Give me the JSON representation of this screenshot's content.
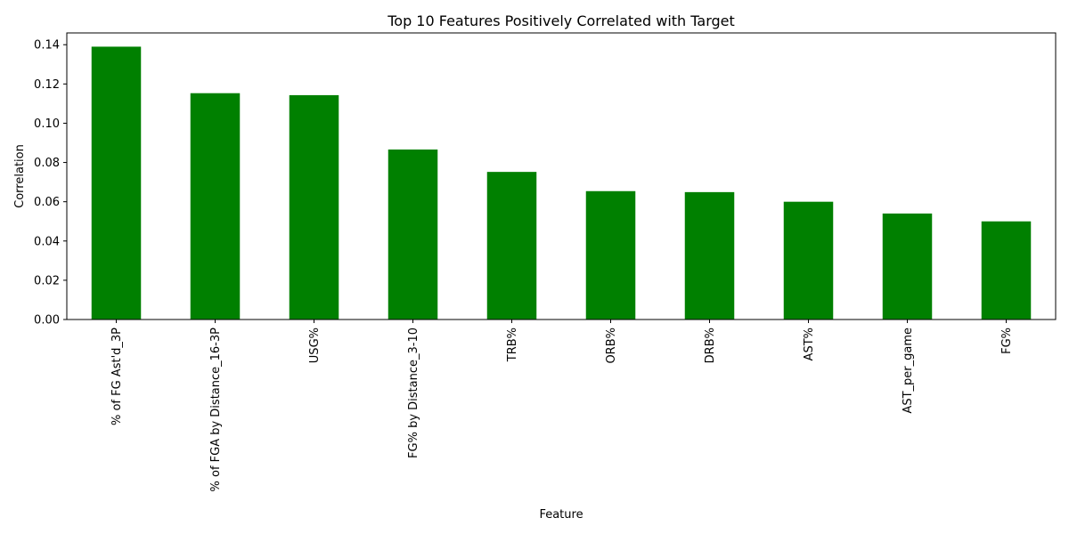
{
  "chart_data": {
    "type": "bar",
    "title": "Top 10 Features Positively Correlated with Target",
    "xlabel": "Feature",
    "ylabel": "Correlation",
    "categories": [
      "% of FG Ast'd_3P",
      "% of FGA by Distance_16-3P",
      "USG%",
      "FG% by Distance_3-10",
      "TRB%",
      "ORB%",
      "DRB%",
      "AST%",
      "AST_per_game",
      "FG%"
    ],
    "values": [
      0.139,
      0.1153,
      0.1143,
      0.0866,
      0.0752,
      0.0654,
      0.0649,
      0.06,
      0.054,
      0.05
    ],
    "ylim": [
      0,
      0.146
    ],
    "yticks": [
      "0.00",
      "0.02",
      "0.04",
      "0.06",
      "0.08",
      "0.10",
      "0.12",
      "0.14"
    ],
    "bar_color": "#008000",
    "grid": false,
    "legend": "none"
  }
}
